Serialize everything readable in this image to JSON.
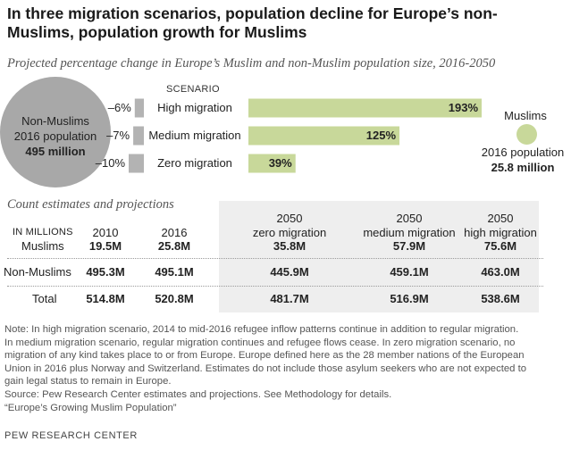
{
  "title": "In three migration scenarios, population decline for Europe’s non-Muslims, population growth for Muslims",
  "subtitle": "Projected percentage change in Europe’s Muslim and non-Muslim population size, 2016-2050",
  "colors": {
    "nonmuslim": "#a8a8a8",
    "muslim": "#c8d89a",
    "grey_bar": "#b3b3b3",
    "table_shade": "#eeeeee"
  },
  "chart_data": {
    "type": "bar",
    "title": "",
    "axis_label": "SCENARIO",
    "categories": [
      "High migration",
      "Medium migration",
      "Zero migration"
    ],
    "series": [
      {
        "name": "Non-Muslims",
        "values": [
          -6,
          -7,
          -10
        ],
        "labels": [
          "–6%",
          "–7%",
          "–10%"
        ]
      },
      {
        "name": "Muslims",
        "values": [
          193,
          125,
          39
        ],
        "labels": [
          "193%",
          "125%",
          "39%"
        ]
      }
    ]
  },
  "nonmuslim_circle": {
    "line1": "Non-Muslims",
    "line2": "2016 population",
    "value": "495 million",
    "size": 495
  },
  "muslim_circle": {
    "name": "Muslims",
    "line2": "2016 population",
    "value": "25.8 million",
    "size": 25.8
  },
  "table": {
    "section_title": "Count estimates and projections",
    "units": "IN MILLIONS",
    "columns": [
      {
        "l1": "",
        "l2": "2010"
      },
      {
        "l1": "",
        "l2": "2016"
      },
      {
        "l1": "2050",
        "l2": "zero migration"
      },
      {
        "l1": "2050",
        "l2": "medium migration"
      },
      {
        "l1": "2050",
        "l2": "high migration"
      }
    ],
    "rows": [
      {
        "label": "Muslims",
        "values": [
          "19.5M",
          "25.8M",
          "35.8M",
          "57.9M",
          "75.6M"
        ]
      },
      {
        "label": "Non-Muslims",
        "values": [
          "495.3M",
          "495.1M",
          "445.9M",
          "459.1M",
          "463.0M"
        ]
      },
      {
        "label": "Total",
        "values": [
          "514.8M",
          "520.8M",
          "481.7M",
          "516.9M",
          "538.6M"
        ]
      }
    ]
  },
  "notes": [
    "Note: In high migration scenario, 2014 to mid-2016 refugee inflow patterns continue in addition to regular migration.",
    "In medium migration scenario, regular migration continues and refugee flows cease. In zero migration scenario, no",
    "migration of any kind takes place to or from Europe. Europe defined here as the 28 member nations of the European",
    "Union in 2016 plus Norway and Switzerland. Estimates do not include those asylum seekers who are not expected to",
    "gain legal status to remain in Europe.",
    "Source: Pew Research Center estimates and projections. See Methodology for details.",
    "“Europe’s Growing Muslim Population”"
  ],
  "footer": "PEW RESEARCH CENTER"
}
